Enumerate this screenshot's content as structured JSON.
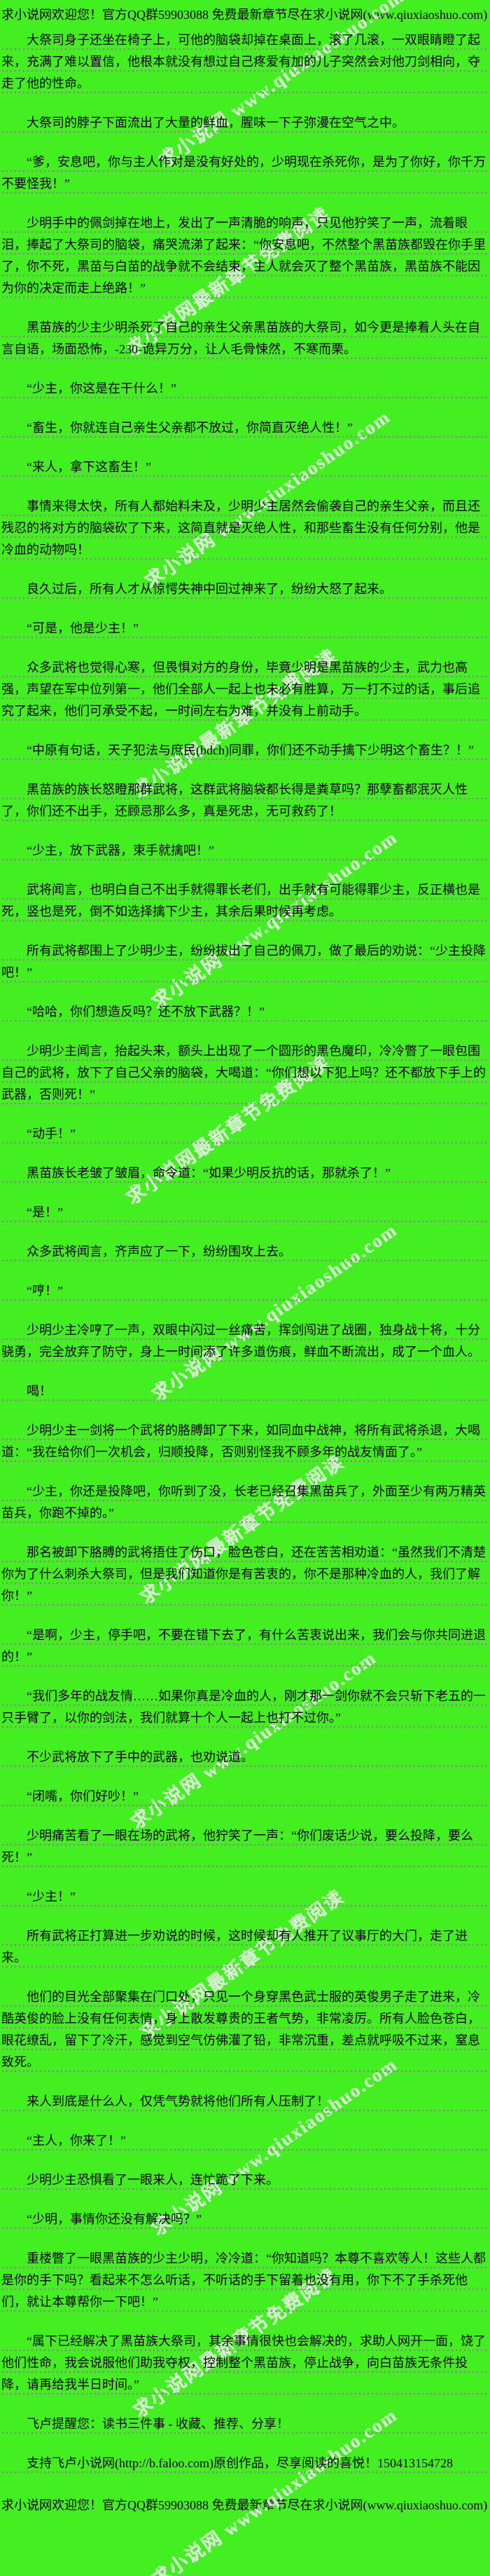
{
  "page": {
    "background_color": "#43ee21",
    "text_color": "#000000",
    "rule_dot_color": "#8a8a8a",
    "watermark_color": "#f4eef6"
  },
  "header": {
    "text": "求小说网欢迎您！官方QQ群59903088 免费最新章节尽在求小说网(www.qiuxiaoshuo.com)"
  },
  "footer": {
    "text": "求小说网欢迎您！官方QQ群59903088 免费最新章节尽在求小说网(www.qiuxiaoshuo.com)"
  },
  "watermarks": {
    "site_name": "求小说网",
    "url_text": "www.qiuxiaoshuo.com",
    "promo_text": "求小说网最新章节免费阅读"
  },
  "paragraphs": [
    "大祭司身子还坐在椅子上，可他的脑袋却掉在桌面上，滚了几滚，一双眼睛瞪了起来，充满了难以置信，他根本就没有想过自己疼爱有加的儿子突然会对他刀剑相向，夺走了他的性命。",
    "大祭司的脖子下面流出了大量的鲜血，腥味一下子弥漫在空气之中。",
    "“爹，安息吧，你与主人作对是没有好处的，少明现在杀死你，是为了你好，你千万不要怪我！”",
    "少明手中的佩剑掉在地上，发出了一声清脆的响声，只见他狞笑了一声，流着眼泪，捧起了大祭司的脑袋，痛哭流涕了起来：“你安息吧，不然整个黑苗族都毁在你手里了，你不死，黑苗与白苗的战争就不会结束，主人就会灭了整个黑苗族，黑苗族不能因为你的决定而走上绝路！”",
    "黑苗族的少主少明杀死了自己的亲生父亲黑苗族的大祭司，如今更是捧着人头在自言自语，场面恐怖，-230-诡异万分，让人毛骨悚然，不寒而栗。",
    "“少主，你这是在干什么！”",
    "“畜生，你就连自己亲生父亲都不放过，你简直灭绝人性！”",
    "“来人，拿下这畜生！”",
    "事情来得太快，所有人都始料未及，少明少主居然会偷袭自己的亲生父亲，而且还残忍的将对方的脑袋砍了下来，这简直就是灭绝人性，和那些畜生没有任何分别，他是冷血的动物吗！",
    "良久过后，所有人才从惊愕失神中回过神来了，纷纷大怒了起来。",
    "“可是，他是少主！”",
    "众多武将也觉得心寒，但畏惧对方的身份，毕竟少明是黑苗族的少主，武力也高强，声望在军中位列第一，他们全部人一起上也未必有胜算，万一打不过的话，事后追究了起来，他们可承受不起，一时间左右为难，并没有上前动手。",
    "“中原有句话，天子犯法与庶民(bdch)同罪，你们还不动手擒下少明这个畜生？！”",
    "黑苗族的族长怒瞪那群武将，这群武将脑袋都长得是粪草吗？那孽畜都泯灭人性了，你们还不出手，还顾忌那么多，真是死忠，无可救药了！",
    "“少主，放下武器，束手就擒吧！”",
    "武将闻言，也明白自己不出手就得罪长老们，出手就有可能得罪少主，反正横也是死，竖也是死，倒不如选择擒下少主，其余后果时候再考虑。",
    "所有武将都围上了少明少主，纷纷拔出了自己的佩刀，做了最后的劝说：“少主投降吧！”",
    "“哈哈，你们想造反吗？还不放下武器？！”",
    "少明少主闻言，抬起头来，额头上出现了一个圆形的黑色魔印，冷冷瞥了一眼包围自己的武将，放下了自己父亲的脑袋，大喝道：“你们想以下犯上吗？还不都放下手上的武器，否则死！”",
    "“动手！”",
    "黑苗族长老皱了皱眉，命令道：“如果少明反抗的话，那就杀了！”",
    "“是！”",
    "众多武将闻言，齐声应了一下，纷纷围攻上去。",
    "“哼！”",
    "少明少主冷哼了一声，双眼中闪过一丝痛苦，挥剑闯进了战圈，独身战十将，十分骁勇，完全放弃了防守，身上一时间添了许多道伤痕，鲜血不断流出，成了一个血人。",
    "喝！",
    "少明少主一剑将一个武将的胳膊卸了下来，如同血中战神，将所有武将杀退，大喝道：“我在给你们一次机会，归顺投降，否则别怪我不顾多年的战友情面了。”",
    "“少主，你还是投降吧，你听到了没，长老已经召集黑苗兵了，外面至少有两万精英苗兵，你跑不掉的。”",
    "那名被卸下胳膊的武将捂住了伤口，脸色苍白，还在苦苦相劝道：“虽然我们不清楚你为了什么刺杀大祭司，但是我们知道你是有苦衷的，你不是那种冷血的人，我们了解你！”",
    "“是啊，少主，停手吧，不要在错下去了，有什么苦衷说出来，我们会与你共同进退的！”",
    "“我们多年的战友情……如果你真是冷血的人，刚才那一剑你就不会只斩下老五的一只手臂了，以你的剑法，我们就算十个人一起上也打不过你。”",
    "不少武将放下了手中的武器，也劝说道。",
    "“闭嘴，你们好吵！”",
    "少明痛苦看了一眼在场的武将，他狞笑了一声：“你们废话少说，要么投降，要么死！”",
    "“少主！”",
    "所有武将正打算进一步劝说的时候，这时候却有人推开了议事厅的大门，走了进来。",
    "他们的目光全部聚集在门口处，只见一个身穿黑色武士服的英俊男子走了进来，冷酷英俊的脸上没有任何表情，身上散发尊贵的王者气势，非常凌厉。所有人脸色苍白，眼花缭乱，留下了冷汗，感觉到空气仿佛灌了铅，非常沉重，差点就呼吸不过来，窒息致死。",
    "来人到底是什么人，仅凭气势就将他们所有人压制了！",
    "“主人，你来了！”",
    "少明少主恐惧看了一眼来人，连忙跪了下来。",
    "“少明，事情你还没有解决吗？”",
    "重楼瞥了一眼黑苗族的少主少明，冷冷道：“你知道吗？本尊不喜欢等人！这些人都是你的手下吗？看起来不怎么听话，不听话的手下留着也没有用，你下不了手杀死他们，就让本尊帮你一下吧！”",
    "“属下已经解决了黑苗族大祭司，其余事情很快也会解决的，求助人网开一面，饶了他们性命，我会说服他们助我夺权，控制整个黑苗族，停止战争，向白苗族无条件投降，请再给我半日时间。”",
    "飞卢提醒您：读书三件事 - 收藏、推荐、分享！",
    "支持飞卢小说网(http://b.faloo.com)原创作品，尽享阅读的喜悦！150413154728"
  ]
}
